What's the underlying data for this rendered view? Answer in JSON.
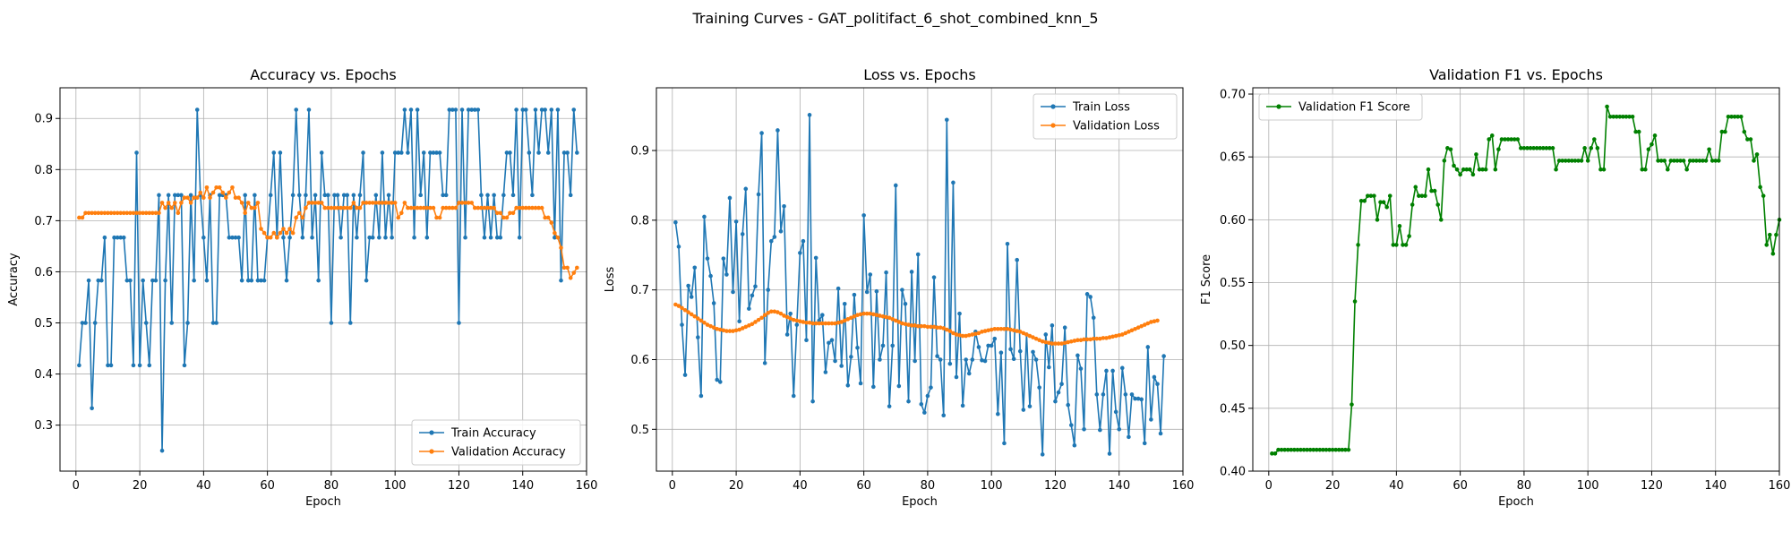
{
  "figure": {
    "title": "Training Curves - GAT_politifact_6_shot_combined_knn_5"
  },
  "chart_data": [
    {
      "type": "line",
      "title": "Accuracy vs. Epochs",
      "xlabel": "Epoch",
      "ylabel": "Accuracy",
      "xlim": [
        -5,
        160
      ],
      "ylim": [
        0.21,
        0.96
      ],
      "xticks": [
        0,
        20,
        40,
        60,
        80,
        100,
        120,
        140,
        160
      ],
      "yticks": [
        0.3,
        0.4,
        0.5,
        0.6,
        0.7,
        0.8,
        0.9
      ],
      "grid": true,
      "legend_position": "lower-right",
      "x_start": 1,
      "series": [
        {
          "name": "Train Accuracy",
          "color": "#1f77b4",
          "values": [
            0.417,
            0.5,
            0.5,
            0.583,
            0.333,
            0.5,
            0.583,
            0.583,
            0.667,
            0.417,
            0.417,
            0.667,
            0.667,
            0.667,
            0.667,
            0.583,
            0.583,
            0.417,
            0.833,
            0.417,
            0.583,
            0.5,
            0.417,
            0.583,
            0.583,
            0.75,
            0.25,
            0.583,
            0.75,
            0.5,
            0.75,
            0.75,
            0.75,
            0.417,
            0.5,
            0.75,
            0.583,
            0.917,
            0.75,
            0.667,
            0.583,
            0.75,
            0.5,
            0.5,
            0.75,
            0.75,
            0.75,
            0.667,
            0.667,
            0.667,
            0.667,
            0.583,
            0.75,
            0.583,
            0.583,
            0.75,
            0.583,
            0.583,
            0.583,
            0.667,
            0.75,
            0.833,
            0.667,
            0.833,
            0.667,
            0.583,
            0.667,
            0.75,
            0.917,
            0.75,
            0.667,
            0.75,
            0.917,
            0.667,
            0.75,
            0.583,
            0.833,
            0.75,
            0.75,
            0.5,
            0.75,
            0.75,
            0.667,
            0.75,
            0.75,
            0.5,
            0.75,
            0.667,
            0.75,
            0.833,
            0.583,
            0.667,
            0.667,
            0.75,
            0.667,
            0.833,
            0.667,
            0.75,
            0.667,
            0.833,
            0.833,
            0.833,
            0.917,
            0.833,
            0.917,
            0.667,
            0.917,
            0.75,
            0.833,
            0.667,
            0.833,
            0.833,
            0.833,
            0.833,
            0.75,
            0.75,
            0.917,
            0.917,
            0.917,
            0.5,
            0.917,
            0.667,
            0.917,
            0.917,
            0.917,
            0.917,
            0.75,
            0.667,
            0.75,
            0.667,
            0.75,
            0.667,
            0.667,
            0.75,
            0.833,
            0.833,
            0.75,
            0.917,
            0.667,
            0.917,
            0.917,
            0.833,
            0.75,
            0.917,
            0.833,
            0.917,
            0.917,
            0.833,
            0.917,
            0.667,
            0.917,
            0.583,
            0.833,
            0.833,
            0.75,
            0.917,
            0.833
          ]
        },
        {
          "name": "Validation Accuracy",
          "color": "#ff7f0e",
          "values": [
            0.706,
            0.706,
            0.715,
            0.715,
            0.715,
            0.715,
            0.715,
            0.715,
            0.715,
            0.715,
            0.715,
            0.715,
            0.715,
            0.715,
            0.715,
            0.715,
            0.715,
            0.715,
            0.715,
            0.715,
            0.715,
            0.715,
            0.715,
            0.715,
            0.715,
            0.715,
            0.735,
            0.725,
            0.735,
            0.725,
            0.735,
            0.715,
            0.735,
            0.745,
            0.745,
            0.735,
            0.745,
            0.745,
            0.755,
            0.745,
            0.765,
            0.745,
            0.755,
            0.765,
            0.765,
            0.755,
            0.745,
            0.755,
            0.765,
            0.745,
            0.745,
            0.735,
            0.715,
            0.735,
            0.725,
            0.725,
            0.735,
            0.684,
            0.676,
            0.667,
            0.667,
            0.676,
            0.667,
            0.676,
            0.684,
            0.676,
            0.684,
            0.676,
            0.706,
            0.715,
            0.706,
            0.725,
            0.735,
            0.735,
            0.735,
            0.735,
            0.735,
            0.725,
            0.725,
            0.725,
            0.725,
            0.725,
            0.725,
            0.725,
            0.725,
            0.725,
            0.735,
            0.725,
            0.725,
            0.735,
            0.735,
            0.735,
            0.735,
            0.735,
            0.735,
            0.735,
            0.735,
            0.735,
            0.735,
            0.735,
            0.706,
            0.715,
            0.735,
            0.725,
            0.725,
            0.725,
            0.725,
            0.725,
            0.725,
            0.725,
            0.725,
            0.725,
            0.706,
            0.706,
            0.725,
            0.725,
            0.725,
            0.725,
            0.725,
            0.735,
            0.735,
            0.735,
            0.735,
            0.735,
            0.725,
            0.725,
            0.725,
            0.725,
            0.725,
            0.725,
            0.725,
            0.715,
            0.715,
            0.706,
            0.706,
            0.715,
            0.715,
            0.725,
            0.725,
            0.725,
            0.725,
            0.725,
            0.725,
            0.725,
            0.725,
            0.725,
            0.706,
            0.706,
            0.696,
            0.676,
            0.667,
            0.647,
            0.608,
            0.608,
            0.588,
            0.598,
            0.608
          ]
        }
      ]
    },
    {
      "type": "line",
      "title": "Loss vs. Epochs",
      "xlabel": "Epoch",
      "ylabel": "Loss",
      "xlim": [
        -5,
        160
      ],
      "ylim": [
        0.44,
        0.99
      ],
      "xticks": [
        0,
        20,
        40,
        60,
        80,
        100,
        120,
        140,
        160
      ],
      "yticks": [
        0.5,
        0.6,
        0.7,
        0.8,
        0.9
      ],
      "grid": true,
      "legend_position": "upper-right",
      "x_start": 1,
      "series": [
        {
          "name": "Train Loss",
          "color": "#1f77b4",
          "values": [
            0.797,
            0.762,
            0.65,
            0.578,
            0.706,
            0.69,
            0.732,
            0.632,
            0.548,
            0.805,
            0.745,
            0.72,
            0.681,
            0.571,
            0.568,
            0.745,
            0.722,
            0.832,
            0.697,
            0.798,
            0.655,
            0.78,
            0.845,
            0.673,
            0.692,
            0.705,
            0.837,
            0.925,
            0.595,
            0.7,
            0.77,
            0.776,
            0.929,
            0.784,
            0.82,
            0.636,
            0.666,
            0.548,
            0.65,
            0.753,
            0.77,
            0.628,
            0.951,
            0.54,
            0.746,
            0.656,
            0.664,
            0.582,
            0.624,
            0.628,
            0.598,
            0.702,
            0.591,
            0.68,
            0.563,
            0.604,
            0.693,
            0.617,
            0.566,
            0.807,
            0.697,
            0.722,
            0.561,
            0.698,
            0.6,
            0.62,
            0.725,
            0.533,
            0.62,
            0.85,
            0.562,
            0.7,
            0.68,
            0.54,
            0.726,
            0.598,
            0.751,
            0.536,
            0.524,
            0.548,
            0.56,
            0.718,
            0.605,
            0.6,
            0.52,
            0.944,
            0.594,
            0.854,
            0.575,
            0.666,
            0.534,
            0.6,
            0.58,
            0.6,
            0.64,
            0.618,
            0.599,
            0.598,
            0.62,
            0.62,
            0.63,
            0.522,
            0.61,
            0.48,
            0.766,
            0.615,
            0.601,
            0.743,
            0.612,
            0.528,
            0.636,
            0.533,
            0.611,
            0.6,
            0.56,
            0.464,
            0.636,
            0.589,
            0.649,
            0.54,
            0.553,
            0.565,
            0.646,
            0.535,
            0.506,
            0.477,
            0.606,
            0.587,
            0.5,
            0.694,
            0.69,
            0.66,
            0.55,
            0.499,
            0.55,
            0.584,
            0.465,
            0.584,
            0.525,
            0.5,
            0.588,
            0.55,
            0.489,
            0.55,
            0.544,
            0.544,
            0.543,
            0.48,
            0.618,
            0.514,
            0.575,
            0.565,
            0.494,
            0.605
          ]
        },
        {
          "name": "Validation Loss",
          "color": "#ff7f0e",
          "values": [
            0.679,
            0.677,
            0.674,
            0.671,
            0.668,
            0.665,
            0.662,
            0.659,
            0.656,
            0.653,
            0.65,
            0.648,
            0.646,
            0.644,
            0.643,
            0.642,
            0.641,
            0.641,
            0.641,
            0.642,
            0.643,
            0.645,
            0.647,
            0.649,
            0.651,
            0.654,
            0.657,
            0.66,
            0.664,
            0.667,
            0.669,
            0.669,
            0.668,
            0.666,
            0.663,
            0.661,
            0.659,
            0.657,
            0.656,
            0.655,
            0.654,
            0.653,
            0.653,
            0.652,
            0.652,
            0.652,
            0.652,
            0.652,
            0.652,
            0.652,
            0.652,
            0.653,
            0.654,
            0.656,
            0.658,
            0.66,
            0.662,
            0.664,
            0.665,
            0.666,
            0.666,
            0.666,
            0.665,
            0.664,
            0.663,
            0.662,
            0.661,
            0.66,
            0.658,
            0.656,
            0.654,
            0.652,
            0.651,
            0.65,
            0.649,
            0.649,
            0.648,
            0.648,
            0.648,
            0.647,
            0.647,
            0.647,
            0.646,
            0.646,
            0.645,
            0.643,
            0.641,
            0.638,
            0.636,
            0.635,
            0.634,
            0.634,
            0.635,
            0.636,
            0.637,
            0.638,
            0.64,
            0.641,
            0.642,
            0.643,
            0.644,
            0.644,
            0.644,
            0.644,
            0.644,
            0.643,
            0.642,
            0.641,
            0.64,
            0.638,
            0.636,
            0.634,
            0.632,
            0.63,
            0.628,
            0.626,
            0.625,
            0.624,
            0.623,
            0.623,
            0.623,
            0.623,
            0.624,
            0.625,
            0.626,
            0.627,
            0.628,
            0.628,
            0.629,
            0.629,
            0.629,
            0.63,
            0.63,
            0.63,
            0.631,
            0.631,
            0.632,
            0.633,
            0.634,
            0.635,
            0.636,
            0.638,
            0.64,
            0.642,
            0.644,
            0.646,
            0.648,
            0.65,
            0.652,
            0.654,
            0.655,
            0.656
          ]
        }
      ]
    },
    {
      "type": "line",
      "title": "Validation F1 vs. Epochs",
      "xlabel": "Epoch",
      "ylabel": "F1 Score",
      "xlim": [
        -5,
        160
      ],
      "ylim": [
        0.4,
        0.705
      ],
      "xticks": [
        0,
        20,
        40,
        60,
        80,
        100,
        120,
        140,
        160
      ],
      "yticks": [
        0.4,
        0.45,
        0.5,
        0.55,
        0.6,
        0.65,
        0.7
      ],
      "grid": true,
      "legend_position": "upper-left",
      "x_start": 1,
      "series": [
        {
          "name": "Validation F1 Score",
          "color": "#008000",
          "values": [
            0.414,
            0.414,
            0.417,
            0.417,
            0.417,
            0.417,
            0.417,
            0.417,
            0.417,
            0.417,
            0.417,
            0.417,
            0.417,
            0.417,
            0.417,
            0.417,
            0.417,
            0.417,
            0.417,
            0.417,
            0.417,
            0.417,
            0.417,
            0.417,
            0.417,
            0.453,
            0.535,
            0.58,
            0.615,
            0.615,
            0.619,
            0.619,
            0.619,
            0.6,
            0.614,
            0.614,
            0.61,
            0.619,
            0.58,
            0.58,
            0.595,
            0.58,
            0.58,
            0.587,
            0.612,
            0.626,
            0.619,
            0.619,
            0.619,
            0.64,
            0.623,
            0.623,
            0.612,
            0.6,
            0.647,
            0.657,
            0.656,
            0.643,
            0.64,
            0.636,
            0.64,
            0.64,
            0.64,
            0.636,
            0.652,
            0.64,
            0.64,
            0.64,
            0.664,
            0.667,
            0.64,
            0.656,
            0.664,
            0.664,
            0.664,
            0.664,
            0.664,
            0.664,
            0.657,
            0.657,
            0.657,
            0.657,
            0.657,
            0.657,
            0.657,
            0.657,
            0.657,
            0.657,
            0.657,
            0.64,
            0.647,
            0.647,
            0.647,
            0.647,
            0.647,
            0.647,
            0.647,
            0.647,
            0.657,
            0.647,
            0.657,
            0.664,
            0.657,
            0.64,
            0.64,
            0.69,
            0.682,
            0.682,
            0.682,
            0.682,
            0.682,
            0.682,
            0.682,
            0.682,
            0.67,
            0.67,
            0.64,
            0.64,
            0.656,
            0.66,
            0.667,
            0.647,
            0.647,
            0.647,
            0.64,
            0.647,
            0.647,
            0.647,
            0.647,
            0.647,
            0.64,
            0.647,
            0.647,
            0.647,
            0.647,
            0.647,
            0.647,
            0.656,
            0.647,
            0.647,
            0.647,
            0.67,
            0.67,
            0.682,
            0.682,
            0.682,
            0.682,
            0.682,
            0.67,
            0.664,
            0.664,
            0.647,
            0.652,
            0.626,
            0.619,
            0.58,
            0.588,
            0.573,
            0.588,
            0.6
          ]
        }
      ]
    }
  ]
}
